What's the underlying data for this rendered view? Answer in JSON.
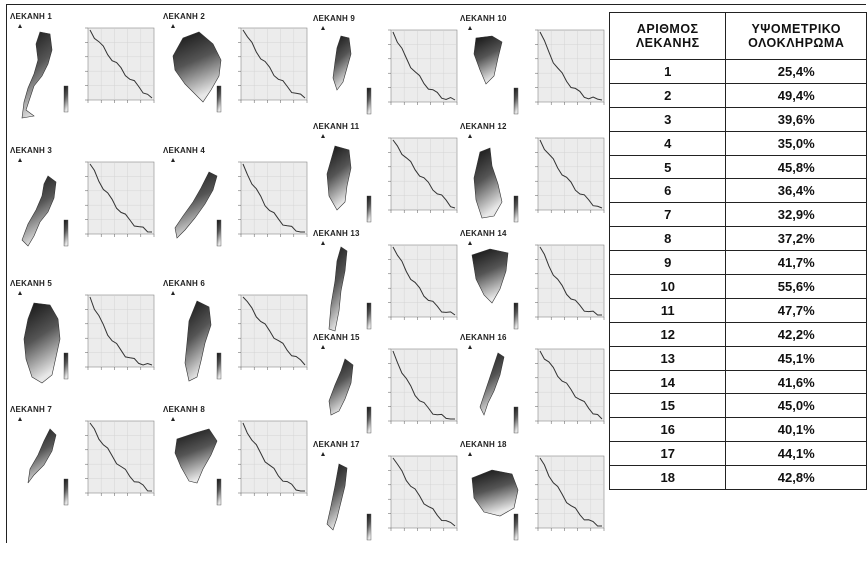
{
  "basins": [
    {
      "title": "ΛΕΚΑΝΗ 1"
    },
    {
      "title": "ΛΕΚΑΝΗ 2"
    },
    {
      "title": "ΛΕΚΑΝΗ 3"
    },
    {
      "title": "ΛΕΚΑΝΗ 4"
    },
    {
      "title": "ΛΕΚΑΝΗ 5"
    },
    {
      "title": "ΛΕΚΑΝΗ 6"
    },
    {
      "title": "ΛΕΚΑΝΗ 7"
    },
    {
      "title": "ΛΕΚΑΝΗ 8"
    },
    {
      "title": "ΛΕΚΑΝΗ 9"
    },
    {
      "title": "ΛΕΚΑΝΗ 10"
    },
    {
      "title": "ΛΕΚΑΝΗ 11"
    },
    {
      "title": "ΛΕΚΑΝΗ 12"
    },
    {
      "title": "ΛΕΚΑΝΗ 13"
    },
    {
      "title": "ΛΕΚΑΝΗ 14"
    },
    {
      "title": "ΛΕΚΑΝΗ 15"
    },
    {
      "title": "ΛΕΚΑΝΗ 16"
    },
    {
      "title": "ΛΕΚΑΝΗ 17"
    },
    {
      "title": "ΛΕΚΑΝΗ 18"
    }
  ],
  "table": {
    "header_col1_line1": "ΑΡΙΘΜΟΣ",
    "header_col1_line2": "ΛΕΚΑΝΗΣ",
    "header_col2_line1": "ΥΨΟΜΕΤΡΙΚΟ",
    "header_col2_line2": "ΟΛΟΚΛΗΡΩΜΑ",
    "rows": [
      {
        "basin": "1",
        "value": "25,4%"
      },
      {
        "basin": "2",
        "value": "49,4%"
      },
      {
        "basin": "3",
        "value": "39,6%"
      },
      {
        "basin": "4",
        "value": "35,0%"
      },
      {
        "basin": "5",
        "value": "45,8%"
      },
      {
        "basin": "6",
        "value": "36,4%"
      },
      {
        "basin": "7",
        "value": "32,9%"
      },
      {
        "basin": "8",
        "value": "37,2%"
      },
      {
        "basin": "9",
        "value": "41,7%"
      },
      {
        "basin": "10",
        "value": "55,6%"
      },
      {
        "basin": "11",
        "value": "47,7%"
      },
      {
        "basin": "12",
        "value": "42,2%"
      },
      {
        "basin": "13",
        "value": "45,1%"
      },
      {
        "basin": "14",
        "value": "41,6%"
      },
      {
        "basin": "15",
        "value": "45,0%"
      },
      {
        "basin": "16",
        "value": "40,1%"
      },
      {
        "basin": "17",
        "value": "44,1%"
      },
      {
        "basin": "18",
        "value": "42,8%"
      }
    ]
  }
}
